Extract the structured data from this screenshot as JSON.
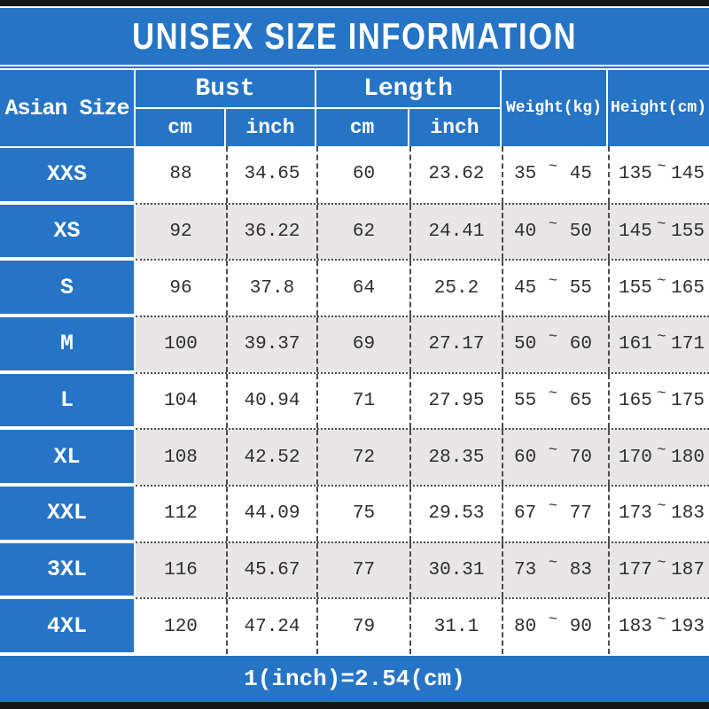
{
  "title": "UNISEX SIZE INFORMATION",
  "colors": {
    "accent_blue": "#2674c6",
    "row_alt_gray": "#e8e6e7",
    "bar_black": "#161616"
  },
  "chart_data": {
    "type": "table",
    "title": "UNISEX SIZE INFORMATION",
    "headers": {
      "asian_size": "Asian Size",
      "bust": "Bust",
      "length": "Length",
      "weight": "Weight(kg)",
      "height": "Height(cm)",
      "bust_cm": "cm",
      "bust_inch": "inch",
      "length_cm": "cm",
      "length_inch": "inch"
    },
    "tilde": "~",
    "rows": [
      {
        "size": "XXS",
        "bust_cm": "88",
        "bust_inch": "34.65",
        "length_cm": "60",
        "length_inch": "23.62",
        "weight_min": "35",
        "weight_max": "45",
        "height_min": "135",
        "height_max": "145"
      },
      {
        "size": "XS",
        "bust_cm": "92",
        "bust_inch": "36.22",
        "length_cm": "62",
        "length_inch": "24.41",
        "weight_min": "40",
        "weight_max": "50",
        "height_min": "145",
        "height_max": "155"
      },
      {
        "size": "S",
        "bust_cm": "96",
        "bust_inch": "37.8",
        "length_cm": "64",
        "length_inch": "25.2",
        "weight_min": "45",
        "weight_max": "55",
        "height_min": "155",
        "height_max": "165"
      },
      {
        "size": "M",
        "bust_cm": "100",
        "bust_inch": "39.37",
        "length_cm": "69",
        "length_inch": "27.17",
        "weight_min": "50",
        "weight_max": "60",
        "height_min": "161",
        "height_max": "171"
      },
      {
        "size": "L",
        "bust_cm": "104",
        "bust_inch": "40.94",
        "length_cm": "71",
        "length_inch": "27.95",
        "weight_min": "55",
        "weight_max": "65",
        "height_min": "165",
        "height_max": "175"
      },
      {
        "size": "XL",
        "bust_cm": "108",
        "bust_inch": "42.52",
        "length_cm": "72",
        "length_inch": "28.35",
        "weight_min": "60",
        "weight_max": "70",
        "height_min": "170",
        "height_max": "180"
      },
      {
        "size": "XXL",
        "bust_cm": "112",
        "bust_inch": "44.09",
        "length_cm": "75",
        "length_inch": "29.53",
        "weight_min": "67",
        "weight_max": "77",
        "height_min": "173",
        "height_max": "183"
      },
      {
        "size": "3XL",
        "bust_cm": "116",
        "bust_inch": "45.67",
        "length_cm": "77",
        "length_inch": "30.31",
        "weight_min": "73",
        "weight_max": "83",
        "height_min": "177",
        "height_max": "187"
      },
      {
        "size": "4XL",
        "bust_cm": "120",
        "bust_inch": "47.24",
        "length_cm": "79",
        "length_inch": "31.1",
        "weight_min": "80",
        "weight_max": "90",
        "height_min": "183",
        "height_max": "193"
      }
    ],
    "footnote": "1(inch)=2.54(cm)"
  }
}
